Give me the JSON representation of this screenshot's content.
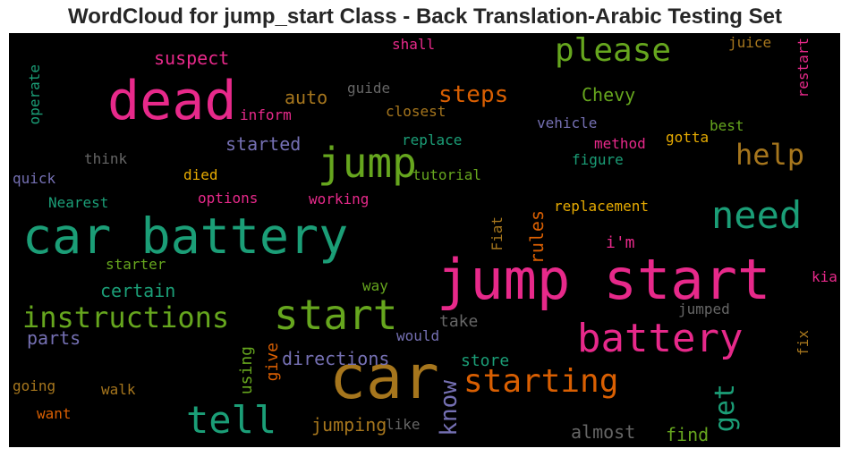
{
  "title": "WordCloud for jump_start Class - Back Translation-Arabic Testing Set",
  "palette": [
    "#e7298a",
    "#1b9e77",
    "#66a61e",
    "#a6761d",
    "#d95f02",
    "#7570b3",
    "#e6ab02",
    "#666666"
  ],
  "words": [
    {
      "text": "car",
      "color": "#a6761d"
    },
    {
      "text": "jump start",
      "color": "#e7298a"
    },
    {
      "text": "car battery",
      "color": "#1b9e77"
    },
    {
      "text": "dead",
      "color": "#e7298a"
    },
    {
      "text": "battery",
      "color": "#e7298a"
    },
    {
      "text": "start",
      "color": "#66a61e"
    },
    {
      "text": "jump",
      "color": "#66a61e"
    },
    {
      "text": "tell",
      "color": "#1b9e77"
    },
    {
      "text": "need",
      "color": "#1b9e77"
    },
    {
      "text": "starting",
      "color": "#d95f02"
    },
    {
      "text": "please",
      "color": "#66a61e"
    },
    {
      "text": "instructions",
      "color": "#66a61e"
    },
    {
      "text": "help",
      "color": "#a6761d"
    },
    {
      "text": "get",
      "color": "#1b9e77"
    },
    {
      "text": "know",
      "color": "#7570b3"
    },
    {
      "text": "steps",
      "color": "#d95f02"
    },
    {
      "text": "directions",
      "color": "#7570b3"
    },
    {
      "text": "jumping",
      "color": "#a6761d"
    },
    {
      "text": "Chevy",
      "color": "#66a61e"
    },
    {
      "text": "certain",
      "color": "#1b9e77"
    },
    {
      "text": "started",
      "color": "#7570b3"
    },
    {
      "text": "suspect",
      "color": "#e7298a"
    },
    {
      "text": "auto",
      "color": "#a6761d"
    },
    {
      "text": "parts",
      "color": "#7570b3"
    },
    {
      "text": "rules",
      "color": "#d95f02"
    },
    {
      "text": "almost",
      "color": "#666666"
    },
    {
      "text": "find",
      "color": "#66a61e"
    },
    {
      "text": "store",
      "color": "#1b9e77"
    },
    {
      "text": "take",
      "color": "#666666"
    },
    {
      "text": "give",
      "color": "#d95f02"
    },
    {
      "text": "using",
      "color": "#66a61e"
    },
    {
      "text": "i'm",
      "color": "#e7298a"
    },
    {
      "text": "replacement",
      "color": "#e6ab02"
    },
    {
      "text": "working",
      "color": "#e7298a"
    },
    {
      "text": "options",
      "color": "#e7298a"
    },
    {
      "text": "tutorial",
      "color": "#66a61e"
    },
    {
      "text": "replace",
      "color": "#1b9e77"
    },
    {
      "text": "died",
      "color": "#e6ab02"
    },
    {
      "text": "think",
      "color": "#666666"
    },
    {
      "text": "quick",
      "color": "#7570b3"
    },
    {
      "text": "Nearest",
      "color": "#1b9e77"
    },
    {
      "text": "starter",
      "color": "#66a61e"
    },
    {
      "text": "way",
      "color": "#66a61e"
    },
    {
      "text": "would",
      "color": "#7570b3"
    },
    {
      "text": "like",
      "color": "#666666"
    },
    {
      "text": "walk",
      "color": "#a6761d"
    },
    {
      "text": "going",
      "color": "#a6761d"
    },
    {
      "text": "want",
      "color": "#d95f02"
    },
    {
      "text": "inform",
      "color": "#e7298a"
    },
    {
      "text": "guide",
      "color": "#666666"
    },
    {
      "text": "closest",
      "color": "#a6761d"
    },
    {
      "text": "shall",
      "color": "#e7298a"
    },
    {
      "text": "juice",
      "color": "#a6761d"
    },
    {
      "text": "vehicle",
      "color": "#7570b3"
    },
    {
      "text": "method",
      "color": "#e7298a"
    },
    {
      "text": "gotta",
      "color": "#e6ab02"
    },
    {
      "text": "best",
      "color": "#66a61e"
    },
    {
      "text": "figure",
      "color": "#1b9e77"
    },
    {
      "text": "jumped",
      "color": "#666666"
    },
    {
      "text": "kia",
      "color": "#e7298a"
    },
    {
      "text": "fix",
      "color": "#a6761d"
    },
    {
      "text": "restart",
      "color": "#e7298a"
    },
    {
      "text": "operate",
      "color": "#1b9e77"
    },
    {
      "text": "Fiat",
      "color": "#a6761d"
    }
  ]
}
